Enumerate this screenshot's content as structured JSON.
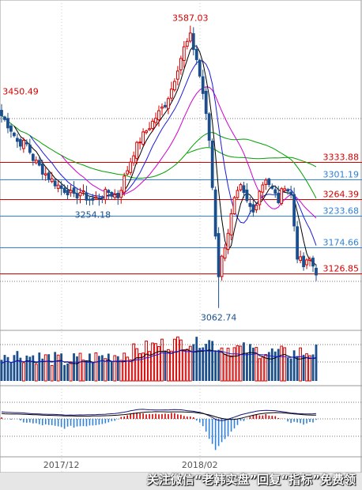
{
  "chart_data": {
    "type": "candlestick",
    "colors": {
      "up": "#d20000",
      "down": "#1a4f8c",
      "ma5": "#000000",
      "ma10": "#1c1cdc",
      "ma20": "#d000d0",
      "ma60": "#00a000",
      "red_level": "#d40000",
      "blue_level": "#2f80d8",
      "gridline": "#777777",
      "macd_dif": "#1a1a80",
      "macd_dea": "#000000"
    },
    "price_range": [
      3030,
      3620
    ],
    "price_levels": [
      {
        "value": 3333.88,
        "label": "3333.88",
        "color": "red"
      },
      {
        "value": 3301.19,
        "label": "3301.19",
        "color": "blue"
      },
      {
        "value": 3264.39,
        "label": "3264.39",
        "color": "red"
      },
      {
        "value": 3233.68,
        "label": "3233.68",
        "color": "blue"
      },
      {
        "value": 3174.66,
        "label": "3174.66",
        "color": "blue"
      },
      {
        "value": 3126.85,
        "label": "3126.85",
        "color": "red"
      }
    ],
    "annotations": [
      {
        "text": "3587.03",
        "value": 3587.03,
        "index": 60,
        "color": "red",
        "position": "above"
      },
      {
        "text": "3450.49",
        "value": 3450.49,
        "index": 0,
        "color": "red",
        "position": "above"
      },
      {
        "text": "3254.18",
        "value": 3254.18,
        "index": 29,
        "color": "blue",
        "position": "below"
      },
      {
        "text": "3062.74",
        "value": 3062.74,
        "index": 69,
        "color": "blue",
        "position": "below"
      }
    ],
    "x_ticks": [
      {
        "label": "2017/12",
        "index": 19
      },
      {
        "label": "2018/02",
        "index": 63
      }
    ],
    "anchors": [
      {
        "i": 0,
        "c": 3420
      },
      {
        "i": 3,
        "c": 3395
      },
      {
        "i": 5,
        "c": 3372
      },
      {
        "i": 8,
        "c": 3366
      },
      {
        "i": 10,
        "c": 3340
      },
      {
        "i": 13,
        "c": 3318
      },
      {
        "i": 16,
        "c": 3300
      },
      {
        "i": 19,
        "c": 3285
      },
      {
        "i": 21,
        "c": 3280
      },
      {
        "i": 23,
        "c": 3268
      },
      {
        "i": 25,
        "c": 3278
      },
      {
        "i": 27,
        "c": 3268
      },
      {
        "i": 29,
        "c": 3262
      },
      {
        "i": 31,
        "c": 3270
      },
      {
        "i": 34,
        "c": 3278
      },
      {
        "i": 37,
        "c": 3270
      },
      {
        "i": 40,
        "c": 3320
      },
      {
        "i": 42,
        "c": 3352
      },
      {
        "i": 44,
        "c": 3375
      },
      {
        "i": 46,
        "c": 3392
      },
      {
        "i": 48,
        "c": 3408
      },
      {
        "i": 50,
        "c": 3425
      },
      {
        "i": 52,
        "c": 3442
      },
      {
        "i": 54,
        "c": 3470
      },
      {
        "i": 56,
        "c": 3510
      },
      {
        "i": 58,
        "c": 3545
      },
      {
        "i": 60,
        "c": 3566
      },
      {
        "i": 62,
        "c": 3525
      },
      {
        "i": 64,
        "c": 3462
      },
      {
        "i": 66,
        "c": 3375
      },
      {
        "i": 68,
        "c": 3200
      },
      {
        "i": 69,
        "c": 3125
      },
      {
        "i": 70,
        "c": 3155
      },
      {
        "i": 72,
        "c": 3205
      },
      {
        "i": 74,
        "c": 3262
      },
      {
        "i": 76,
        "c": 3285
      },
      {
        "i": 78,
        "c": 3258
      },
      {
        "i": 80,
        "c": 3240
      },
      {
        "i": 82,
        "c": 3282
      },
      {
        "i": 84,
        "c": 3305
      },
      {
        "i": 86,
        "c": 3282
      },
      {
        "i": 88,
        "c": 3262
      },
      {
        "i": 90,
        "c": 3292
      },
      {
        "i": 92,
        "c": 3272
      },
      {
        "i": 94,
        "c": 3160
      },
      {
        "i": 96,
        "c": 3140
      },
      {
        "i": 98,
        "c": 3152
      },
      {
        "i": 100,
        "c": 3130
      }
    ],
    "pivots": [
      {
        "i": 29,
        "low": 3254.18
      },
      {
        "i": 60,
        "high": 3587.03
      },
      {
        "i": 69,
        "low": 3062.74
      }
    ],
    "volume": {
      "min": 0.3,
      "max": 0.98,
      "anchors": [
        {
          "i": 0,
          "v": 0.62
        },
        {
          "i": 10,
          "v": 0.55
        },
        {
          "i": 20,
          "v": 0.45
        },
        {
          "i": 30,
          "v": 0.52
        },
        {
          "i": 40,
          "v": 0.62
        },
        {
          "i": 50,
          "v": 0.8
        },
        {
          "i": 60,
          "v": 0.88
        },
        {
          "i": 65,
          "v": 0.92
        },
        {
          "i": 70,
          "v": 0.74
        },
        {
          "i": 80,
          "v": 0.68
        },
        {
          "i": 90,
          "v": 0.6
        },
        {
          "i": 100,
          "v": 0.66
        }
      ]
    },
    "macd": {
      "anchors": [
        {
          "i": 0,
          "v": 0.05
        },
        {
          "i": 10,
          "v": -0.15
        },
        {
          "i": 20,
          "v": -0.28
        },
        {
          "i": 30,
          "v": -0.18
        },
        {
          "i": 36,
          "v": -0.05
        },
        {
          "i": 42,
          "v": 0.38
        },
        {
          "i": 48,
          "v": 0.25
        },
        {
          "i": 55,
          "v": 0.32
        },
        {
          "i": 61,
          "v": 0.08
        },
        {
          "i": 64,
          "v": -0.25
        },
        {
          "i": 68,
          "v": -1.0
        },
        {
          "i": 72,
          "v": -0.55
        },
        {
          "i": 76,
          "v": -0.1
        },
        {
          "i": 80,
          "v": 0.18
        },
        {
          "i": 84,
          "v": 0.25
        },
        {
          "i": 88,
          "v": 0.08
        },
        {
          "i": 92,
          "v": -0.1
        },
        {
          "i": 96,
          "v": -0.18
        },
        {
          "i": 100,
          "v": -0.05
        }
      ]
    }
  },
  "watermark": "关注微信“老韩实盘”回复“指标”免费领"
}
